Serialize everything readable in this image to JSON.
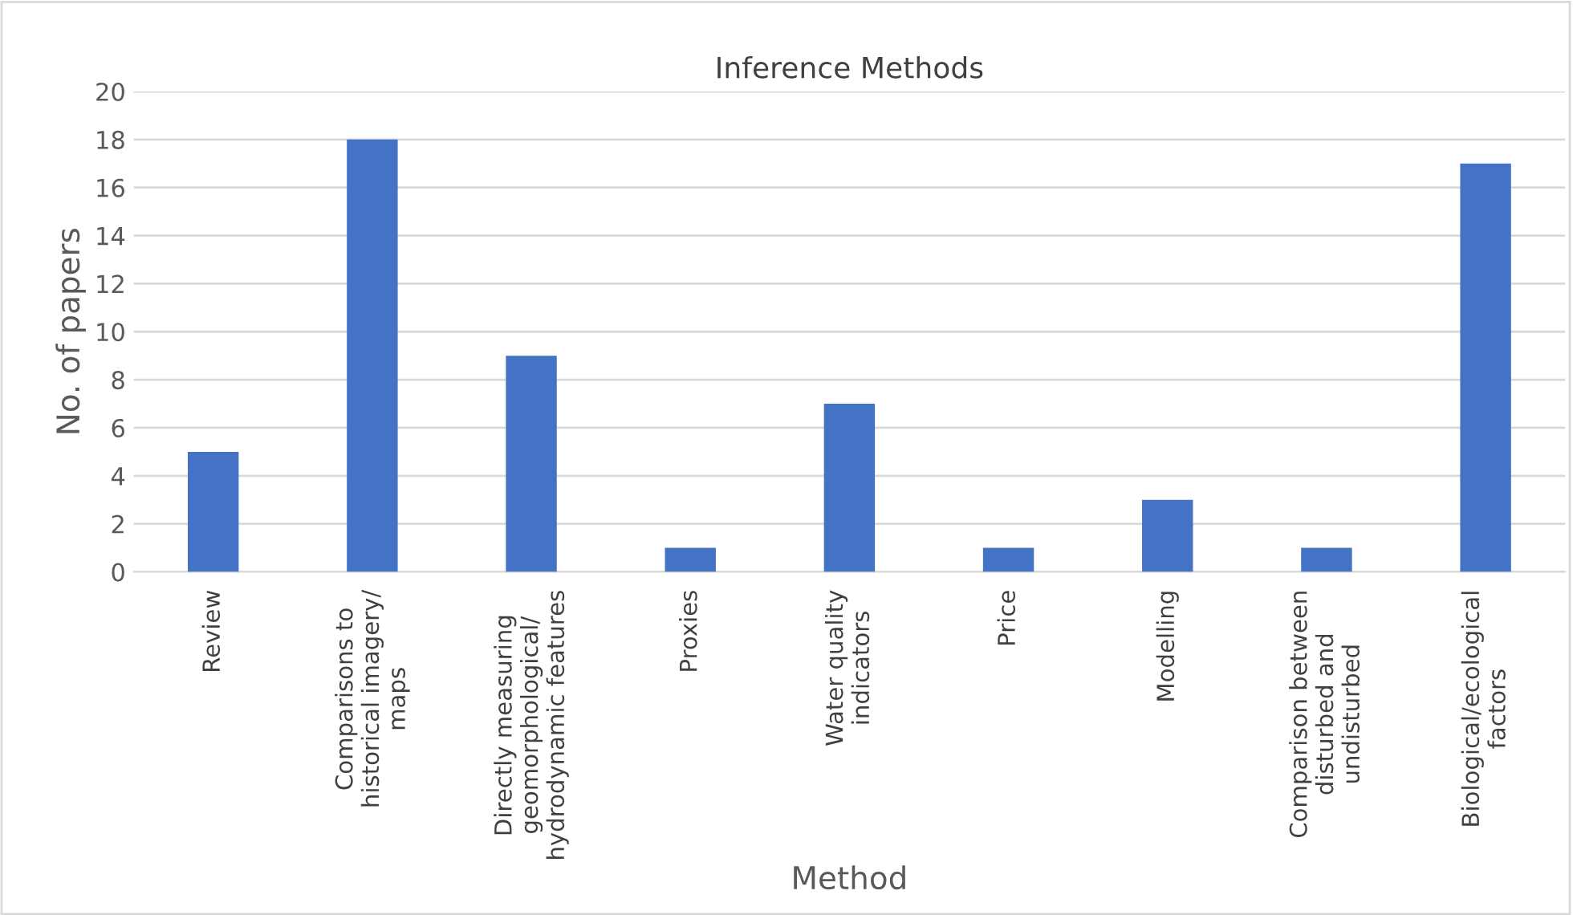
{
  "chart_data": {
    "type": "bar",
    "title": "Inference Methods",
    "xlabel": "Method",
    "ylabel": "No. of papers",
    "categories": [
      "Review",
      "Comparisons to\nhistorical imagery/\nmaps",
      "Directly measuring\ngeomorphological/\nhydrodynamic features",
      "Proxies",
      "Water quality\nindicators",
      "Price",
      "Modelling",
      "Comparison between\ndisturbed and\nundisturbed",
      "Biological/ecological\nfactors"
    ],
    "values": [
      5,
      18,
      9,
      1,
      7,
      1,
      3,
      1,
      17
    ],
    "color": "#4472c4",
    "ylim": [
      0,
      20
    ],
    "yticks": [
      0,
      2,
      4,
      6,
      8,
      10,
      12,
      14,
      16,
      18,
      20
    ],
    "grid": "y"
  }
}
